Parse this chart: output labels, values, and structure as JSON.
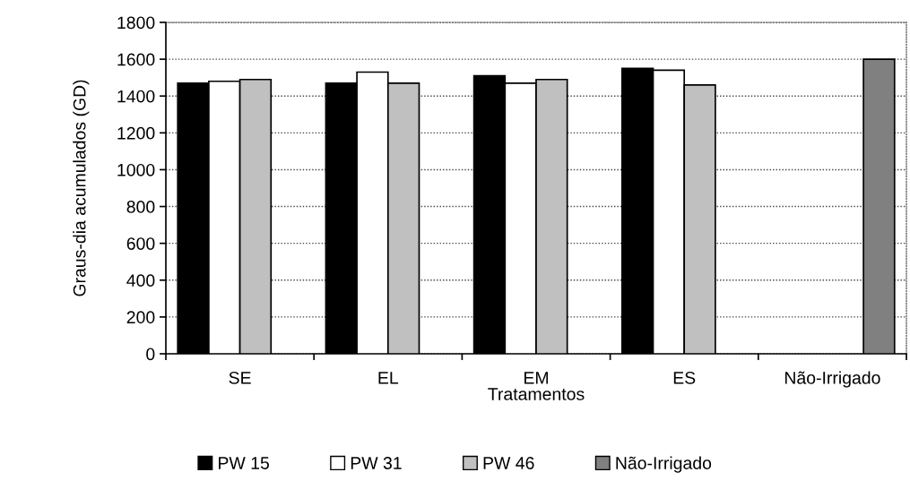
{
  "chart_data": {
    "type": "bar",
    "xlabel": "Tratamentos",
    "ylabel": "Graus-dia acumulados (GD)",
    "categories": [
      "SE",
      "EL",
      "EM",
      "ES",
      "Não-Irrigado"
    ],
    "series": [
      {
        "name": "PW 15",
        "color": "#000000",
        "values": [
          1470,
          1470,
          1510,
          1550,
          null
        ]
      },
      {
        "name": "PW 31",
        "color": "#ffffff",
        "values": [
          1480,
          1530,
          1470,
          1540,
          null
        ]
      },
      {
        "name": "PW 46",
        "color": "#c0c0c0",
        "values": [
          1490,
          1470,
          1490,
          1460,
          null
        ]
      },
      {
        "name": "Não-Irrigado",
        "color": "#808080",
        "values": [
          null,
          null,
          null,
          null,
          1600
        ]
      }
    ],
    "ylim": [
      0,
      1800
    ],
    "yticks": [
      0,
      200,
      400,
      600,
      800,
      1000,
      1200,
      1400,
      1600,
      1800
    ],
    "grid": "y",
    "legend": "bottom"
  }
}
